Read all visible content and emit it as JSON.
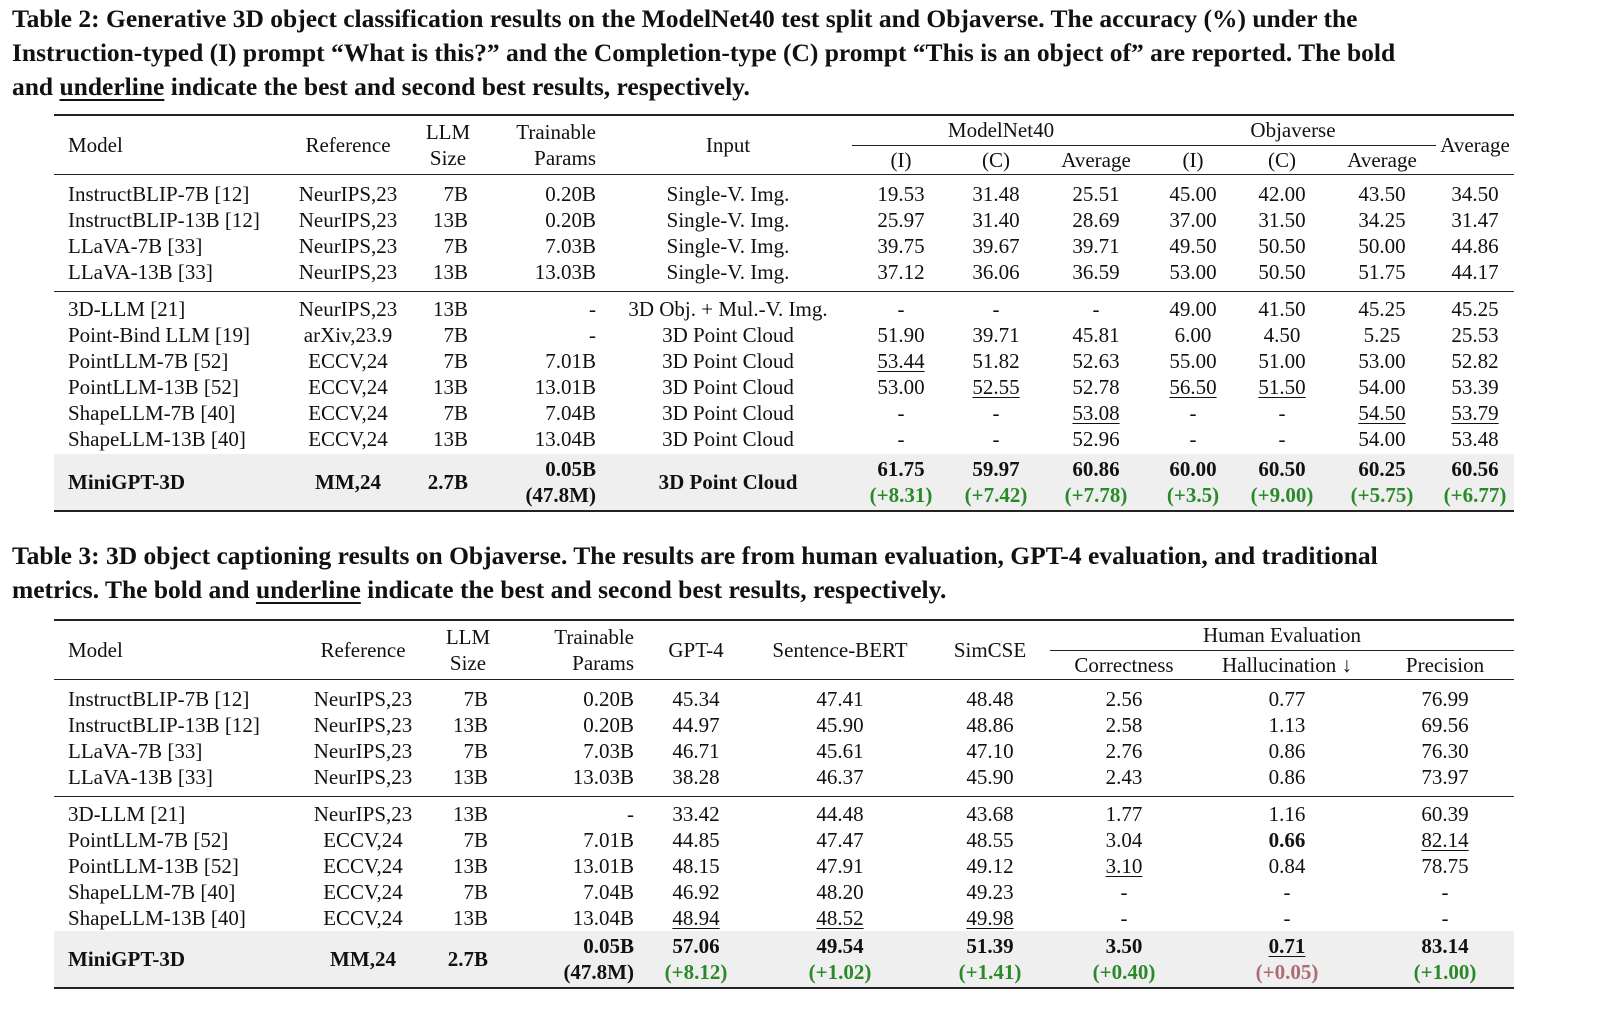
{
  "table2": {
    "caption_line1": "Table 2: Generative 3D object classification results on the ModelNet40 test split and Objaverse. The accuracy (%) under the",
    "caption_line2": "Instruction-typed (I) prompt “What is this?” and the Completion-type (C) prompt “This is an object of” are reported. The bold",
    "caption_line3_pre": "and ",
    "caption_line3_ul": "underline",
    "caption_line3_post": " indicate the best and second best results, respectively.",
    "headers": {
      "model": "Model",
      "reference": "Reference",
      "llm1": "LLM",
      "llm2": "Size",
      "trainable1": "Trainable",
      "trainable2": "Params",
      "input": "Input",
      "modelnet": "ModelNet40",
      "objaverse": "Objaverse",
      "sub_i": "(I)",
      "sub_c": "(C)",
      "sub_avg": "Average",
      "average": "Average"
    },
    "rows": [
      [
        "InstructBLIP-7B [12]",
        "NeurIPS,23",
        "7B",
        "0.20B",
        "Single-V. Img.",
        "19.53",
        "31.48",
        "25.51",
        "45.00",
        "42.00",
        "43.50",
        "34.50"
      ],
      [
        "InstructBLIP-13B [12]",
        "NeurIPS,23",
        "13B",
        "0.20B",
        "Single-V. Img.",
        "25.97",
        "31.40",
        "28.69",
        "37.00",
        "31.50",
        "34.25",
        "31.47"
      ],
      [
        "LLaVA-7B [33]",
        "NeurIPS,23",
        "7B",
        "7.03B",
        "Single-V. Img.",
        "39.75",
        "39.67",
        "39.71",
        "49.50",
        "50.50",
        "50.00",
        "44.86"
      ],
      [
        "LLaVA-13B [33]",
        "NeurIPS,23",
        "13B",
        "13.03B",
        "Single-V. Img.",
        "37.12",
        "36.06",
        "36.59",
        "53.00",
        "50.50",
        "51.75",
        "44.17"
      ],
      [
        "3D-LLM [21]",
        "NeurIPS,23",
        "13B",
        "-",
        "3D Obj. + Mul.-V. Img.",
        "-",
        "-",
        "-",
        "49.00",
        "41.50",
        "45.25",
        "45.25"
      ],
      [
        "Point-Bind LLM [19]",
        "arXiv,23.9",
        "7B",
        "-",
        "3D Point Cloud",
        "51.90",
        "39.71",
        "45.81",
        "6.00",
        "4.50",
        "5.25",
        "25.53"
      ],
      [
        "PointLLM-7B [52]",
        "ECCV,24",
        "7B",
        "7.01B",
        "3D Point Cloud",
        "53.44",
        "51.82",
        "52.63",
        "55.00",
        "51.00",
        "53.00",
        "52.82"
      ],
      [
        "PointLLM-13B [52]",
        "ECCV,24",
        "13B",
        "13.01B",
        "3D Point Cloud",
        "53.00",
        "52.55",
        "52.78",
        "56.50",
        "51.50",
        "54.00",
        "53.39"
      ],
      [
        "ShapeLLM-7B [40]",
        "ECCV,24",
        "7B",
        "7.04B",
        "3D Point Cloud",
        "-",
        "-",
        "53.08",
        "-",
        "-",
        "54.50",
        "53.79"
      ],
      [
        "ShapeLLM-13B [40]",
        "ECCV,24",
        "13B",
        "13.04B",
        "3D Point Cloud",
        "-",
        "-",
        "52.96",
        "-",
        "-",
        "54.00",
        "53.48"
      ]
    ],
    "ours": {
      "model": "MiniGPT-3D",
      "reference": "MM,24",
      "llm": "2.7B",
      "trainable1": "0.05B",
      "trainable2": "(47.8M)",
      "input": "3D Point Cloud",
      "values": [
        "61.75",
        "59.97",
        "60.86",
        "60.00",
        "60.50",
        "60.25",
        "60.56"
      ],
      "gains": [
        "(+8.31)",
        "(+7.42)",
        "(+7.78)",
        "(+3.5)",
        "(+9.00)",
        "(+5.75)",
        "(+6.77)"
      ]
    }
  },
  "table3": {
    "caption_line1": "Table 3: 3D object captioning results on Objaverse. The results are from human evaluation, GPT-4 evaluation, and traditional",
    "caption_line2_pre": "metrics. The bold and ",
    "caption_line2_ul": "underline",
    "caption_line2_post": " indicate the best and second best results, respectively.",
    "headers": {
      "model": "Model",
      "reference": "Reference",
      "llm1": "LLM",
      "llm2": "Size",
      "trainable1": "Trainable",
      "trainable2": "Params",
      "gpt4": "GPT-4",
      "sbert": "Sentence-BERT",
      "simcse": "SimCSE",
      "human": "Human Evaluation",
      "correctness": "Correctness",
      "hallucination": "Hallucination ↓",
      "precision": "Precision"
    },
    "rows": [
      [
        "InstructBLIP-7B [12]",
        "NeurIPS,23",
        "7B",
        "0.20B",
        "45.34",
        "47.41",
        "48.48",
        "2.56",
        "0.77",
        "76.99"
      ],
      [
        "InstructBLIP-13B [12]",
        "NeurIPS,23",
        "13B",
        "0.20B",
        "44.97",
        "45.90",
        "48.86",
        "2.58",
        "1.13",
        "69.56"
      ],
      [
        "LLaVA-7B [33]",
        "NeurIPS,23",
        "7B",
        "7.03B",
        "46.71",
        "45.61",
        "47.10",
        "2.76",
        "0.86",
        "76.30"
      ],
      [
        "LLaVA-13B [33]",
        "NeurIPS,23",
        "13B",
        "13.03B",
        "38.28",
        "46.37",
        "45.90",
        "2.43",
        "0.86",
        "73.97"
      ],
      [
        "3D-LLM [21]",
        "NeurIPS,23",
        "13B",
        "-",
        "33.42",
        "44.48",
        "43.68",
        "1.77",
        "1.16",
        "60.39"
      ],
      [
        "PointLLM-7B [52]",
        "ECCV,24",
        "7B",
        "7.01B",
        "44.85",
        "47.47",
        "48.55",
        "3.04",
        "0.66",
        "82.14"
      ],
      [
        "PointLLM-13B [52]",
        "ECCV,24",
        "13B",
        "13.01B",
        "48.15",
        "47.91",
        "49.12",
        "3.10",
        "0.84",
        "78.75"
      ],
      [
        "ShapeLLM-7B [40]",
        "ECCV,24",
        "7B",
        "7.04B",
        "46.92",
        "48.20",
        "49.23",
        "-",
        "-",
        "-"
      ],
      [
        "ShapeLLM-13B [40]",
        "ECCV,24",
        "13B",
        "13.04B",
        "48.94",
        "48.52",
        "49.98",
        "-",
        "-",
        "-"
      ]
    ],
    "ours": {
      "model": "MiniGPT-3D",
      "reference": "MM,24",
      "llm": "2.7B",
      "trainable1": "0.05B",
      "trainable2": "(47.8M)",
      "values": [
        "57.06",
        "49.54",
        "51.39",
        "3.50",
        "0.71",
        "83.14"
      ],
      "gains": [
        "(+8.12)",
        "(+1.02)",
        "(+1.41)",
        "(+0.40)",
        "(+0.05)",
        "(+1.00)"
      ]
    }
  }
}
